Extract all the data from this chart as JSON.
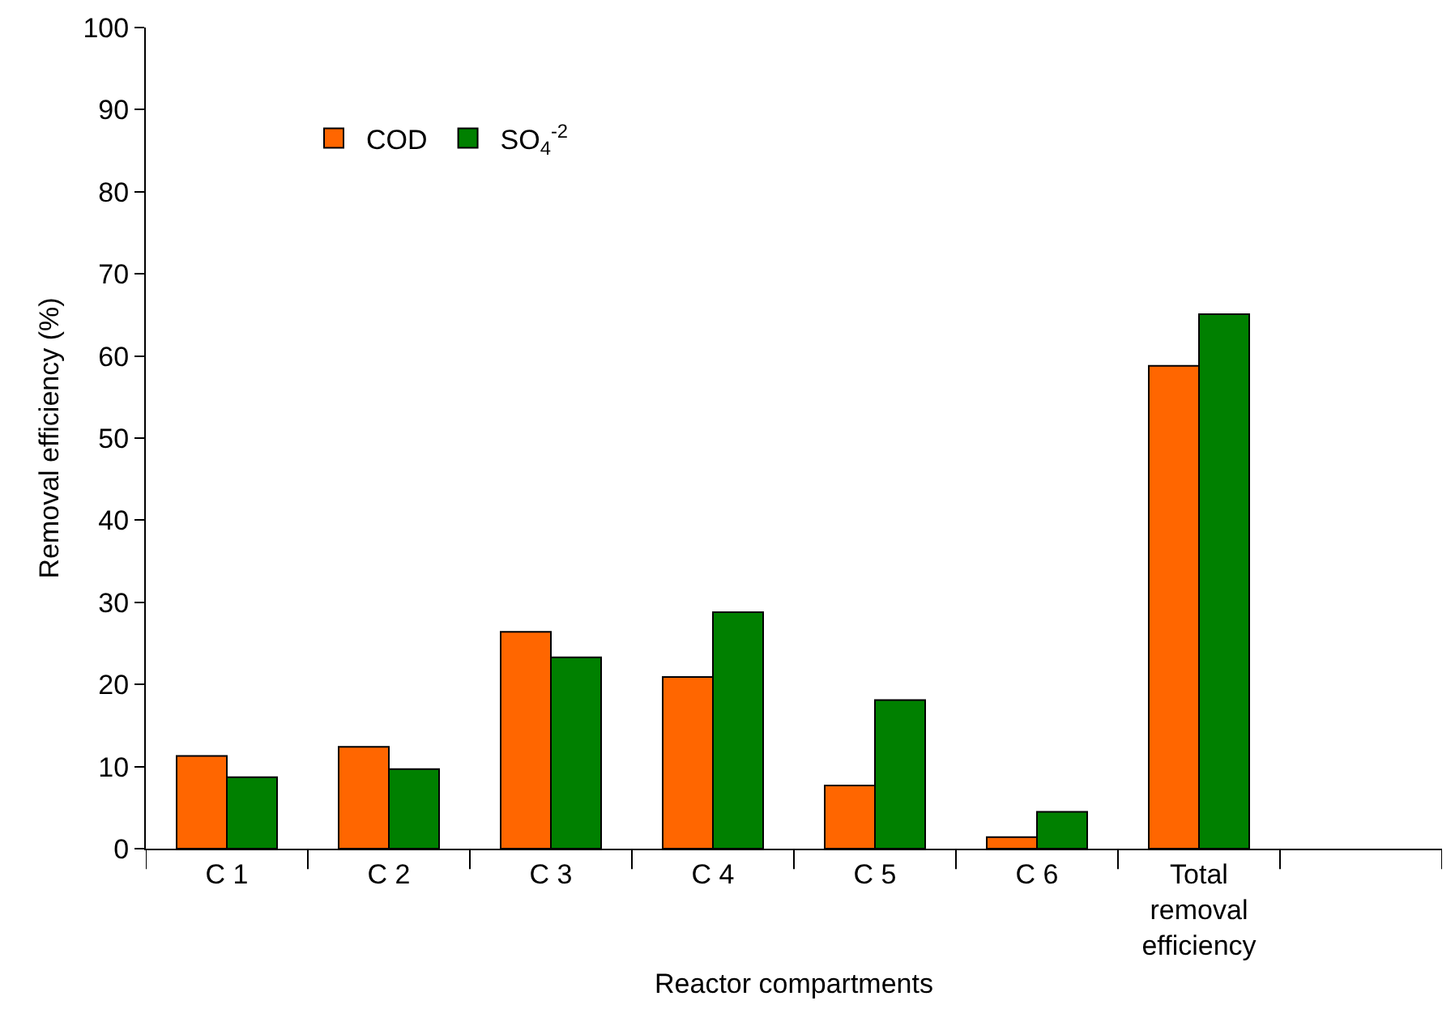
{
  "chart_data": {
    "type": "bar",
    "xlabel": "Reactor compartments",
    "ylabel": "Removal efficiency (%)",
    "categories": [
      "C 1",
      "C 2",
      "C 3",
      "C 4",
      "C 5",
      "C 6",
      "Total removal efficiency",
      null
    ],
    "series": [
      {
        "name": "COD",
        "color": "#ff6600",
        "values": [
          11.3,
          12.4,
          26.4,
          20.9,
          7.7,
          1.4,
          58.8,
          null
        ]
      },
      {
        "name": "SO$_{4}$$^{-2}$",
        "color": "#008000",
        "values": [
          8.7,
          9.7,
          23.3,
          28.8,
          18.1,
          4.5,
          65.1,
          null
        ]
      }
    ],
    "ylim": [
      0,
      100
    ],
    "yticks": [
      0,
      10,
      20,
      30,
      40,
      50,
      60,
      70,
      80,
      90,
      100
    ],
    "grid": false,
    "legend": "top left"
  }
}
